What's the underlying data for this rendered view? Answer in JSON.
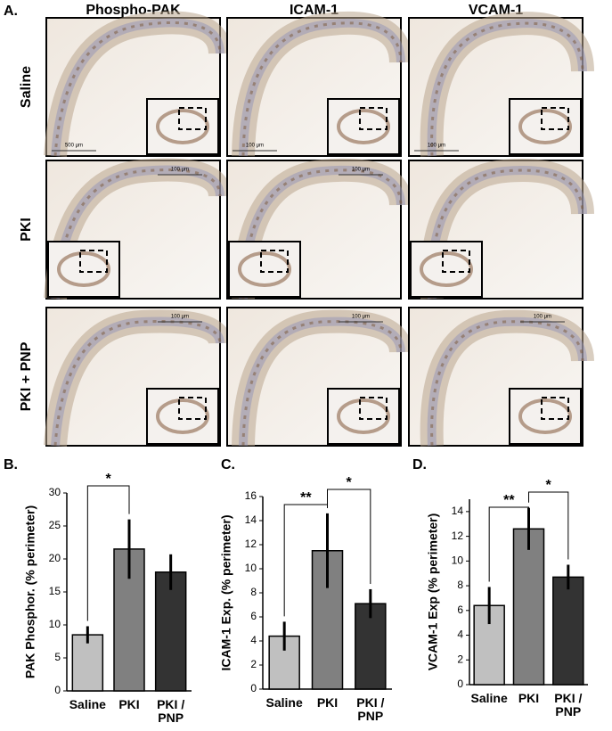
{
  "panel_a": {
    "label": "A.",
    "columns": [
      "Phospho-PAK",
      "ICAM-1",
      "VCAM-1"
    ],
    "rows": [
      "Saline",
      "PKI",
      "PKI + PNP"
    ],
    "scale_labels": [
      [
        "500 μm",
        "100 μm",
        "100 μm"
      ],
      [
        "100 μm",
        "100 μm",
        null
      ],
      [
        "100 μm",
        "100 μm",
        "100 μm"
      ]
    ]
  },
  "chart_data": [
    {
      "type": "bar",
      "panel_label": "B.",
      "y_label": "PAK Phosphor. (% perimeter)",
      "categories": [
        "Saline",
        "PKI",
        "PKI / PNP"
      ],
      "values": [
        8.5,
        21.5,
        18
      ],
      "errors": [
        1.3,
        4.5,
        2.7
      ],
      "colors": [
        "#c0c0c0",
        "#808080",
        "#333333"
      ],
      "ylim": [
        0,
        30
      ],
      "yticks": [
        0,
        5,
        10,
        15,
        20,
        25,
        30
      ],
      "annotations": [
        {
          "text": "*",
          "between": [
            "Saline",
            "PKI"
          ]
        }
      ]
    },
    {
      "type": "bar",
      "panel_label": "C.",
      "y_label": "ICAM-1 Exp. (% perimeter)",
      "categories": [
        "Saline",
        "PKI",
        "PKI / PNP"
      ],
      "values": [
        4.4,
        11.5,
        7.1
      ],
      "errors": [
        1.2,
        3.1,
        1.2
      ],
      "colors": [
        "#c0c0c0",
        "#808080",
        "#333333"
      ],
      "ylim": [
        0,
        16
      ],
      "yticks": [
        0,
        2,
        4,
        6,
        8,
        10,
        12,
        14,
        16
      ],
      "annotations": [
        {
          "text": "**",
          "between": [
            "Saline",
            "PKI"
          ]
        },
        {
          "text": "*",
          "between": [
            "PKI",
            "PKI / PNP"
          ]
        }
      ]
    },
    {
      "type": "bar",
      "panel_label": "D.",
      "y_label": "VCAM-1 Exp (% perimeter)",
      "categories": [
        "Saline",
        "PKI",
        "PKI / PNP"
      ],
      "values": [
        6.4,
        12.6,
        8.7
      ],
      "errors": [
        1.5,
        1.7,
        1.0
      ],
      "colors": [
        "#c0c0c0",
        "#808080",
        "#333333"
      ],
      "ylim": [
        0,
        15
      ],
      "yticks": [
        0,
        2,
        4,
        6,
        8,
        10,
        12,
        14
      ],
      "annotations": [
        {
          "text": "**",
          "between": [
            "Saline",
            "PKI"
          ]
        },
        {
          "text": "*",
          "between": [
            "PKI",
            "PKI / PNP"
          ]
        }
      ]
    }
  ]
}
